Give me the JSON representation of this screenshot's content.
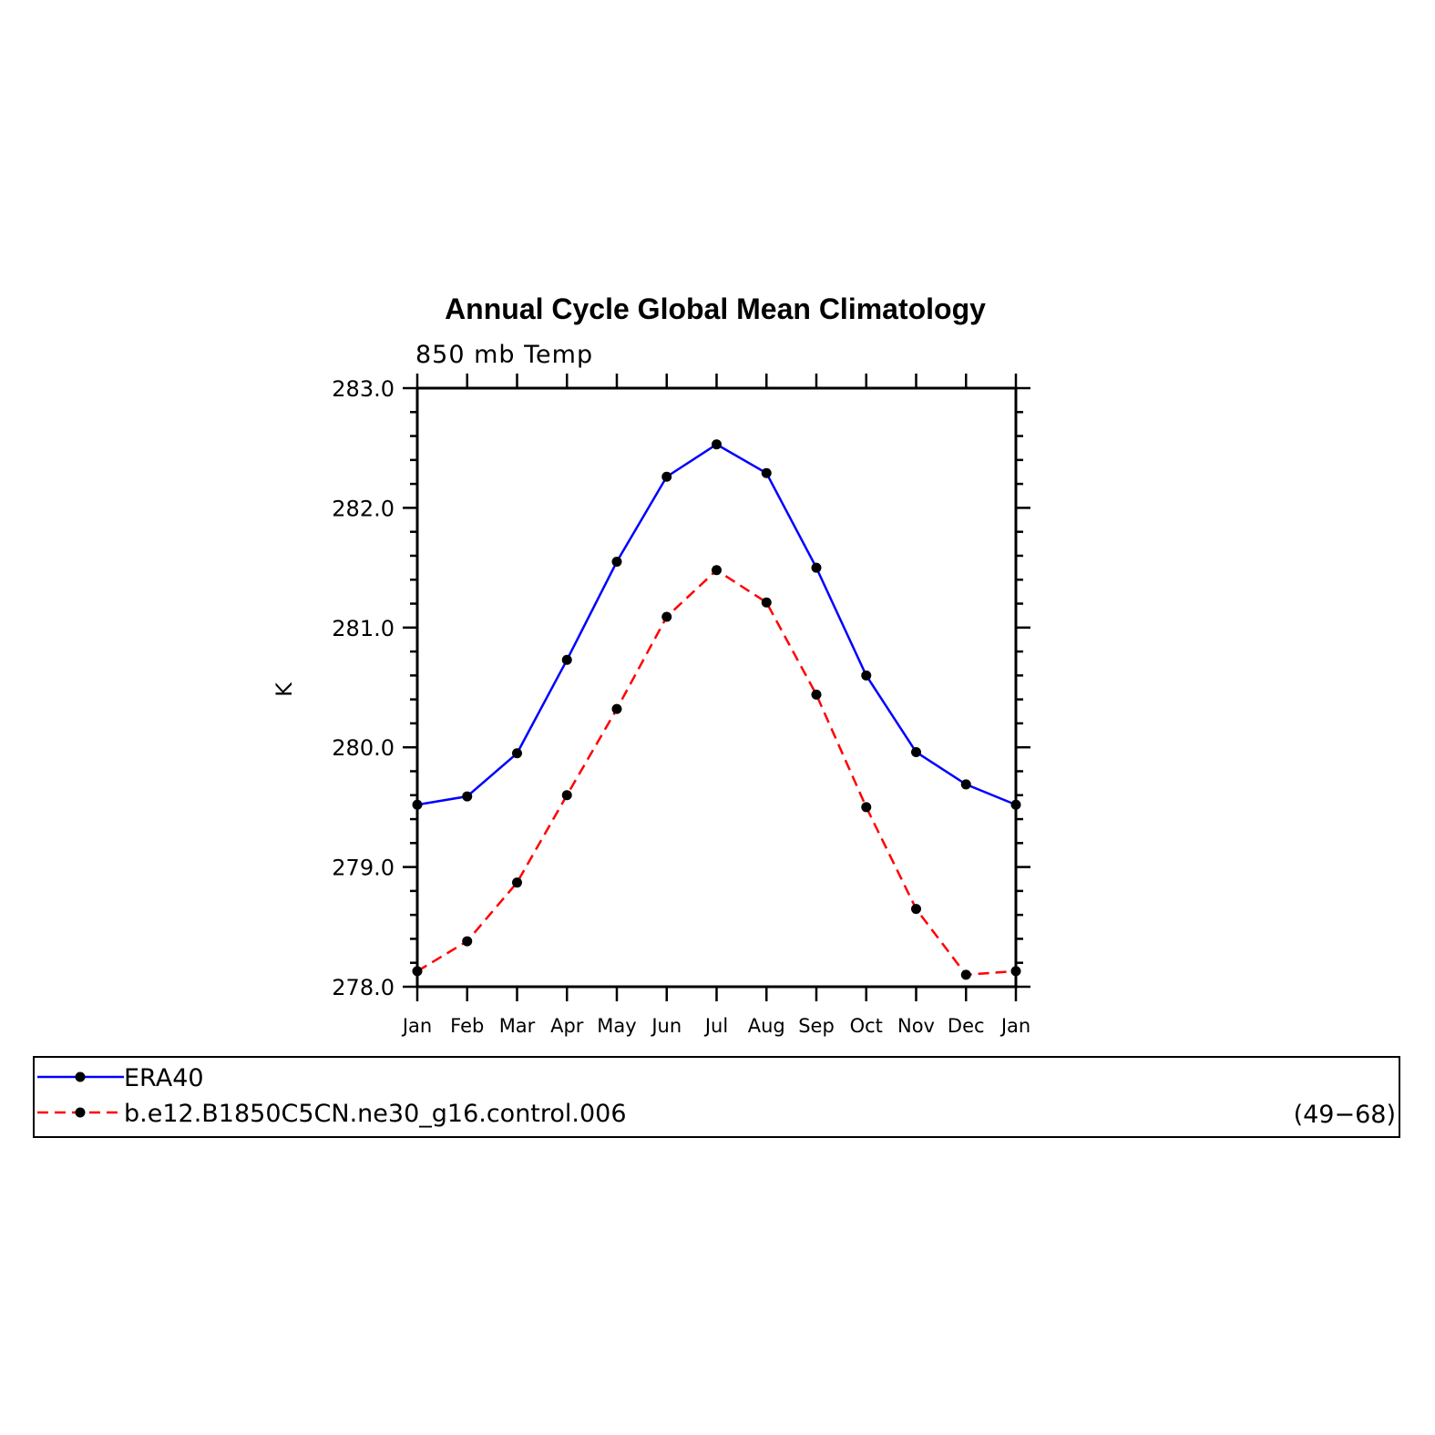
{
  "chart_data": {
    "type": "line",
    "title": "Annual Cycle Global Mean Climatology",
    "subtitle": "850 mb Temp",
    "ylabel": "K",
    "xlabel": "",
    "ylim": [
      278.0,
      283.0
    ],
    "yticks": [
      "278.0",
      "279.0",
      "280.0",
      "281.0",
      "282.0",
      "283.0"
    ],
    "ytick_values": [
      278.0,
      279.0,
      280.0,
      281.0,
      282.0,
      283.0
    ],
    "categories": [
      "Jan",
      "Feb",
      "Mar",
      "Apr",
      "May",
      "Jun",
      "Jul",
      "Aug",
      "Sep",
      "Oct",
      "Nov",
      "Dec",
      "Jan"
    ],
    "series": [
      {
        "name": "ERA40",
        "color": "#0000ff",
        "dash": "solid",
        "marker": "circle",
        "values": [
          279.52,
          279.59,
          279.95,
          280.73,
          281.55,
          282.26,
          282.53,
          282.29,
          281.5,
          280.6,
          279.96,
          279.69,
          279.52
        ]
      },
      {
        "name": "b.e12.B1850C5CN.ne30_g16.control.006",
        "color": "#ff0000",
        "dash": "dashed",
        "marker": "circle",
        "values": [
          278.13,
          278.38,
          278.87,
          279.6,
          280.32,
          281.09,
          281.48,
          281.21,
          280.44,
          279.5,
          278.65,
          278.1,
          278.13
        ]
      }
    ],
    "legend": {
      "placement": "bottom",
      "entries": [
        "ERA40",
        "b.e12.B1850C5CN.ne30_g16.control.006"
      ],
      "note": "(49−68)"
    },
    "grid": false
  }
}
